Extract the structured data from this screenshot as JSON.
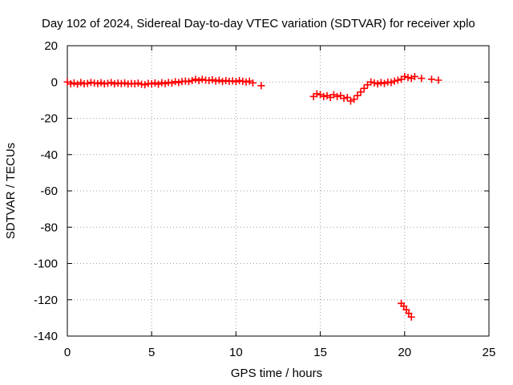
{
  "chart_data": {
    "type": "scatter",
    "title": "Day 102 of 2024, Sidereal Day-to-day VTEC variation (SDTVAR) for receiver xplo",
    "xlabel": "GPS time / hours",
    "ylabel": "SDTVAR / TECUs",
    "xlim": [
      0,
      25
    ],
    "ylim": [
      -140,
      20
    ],
    "xticks": [
      0,
      5,
      10,
      15,
      20,
      25
    ],
    "yticks": [
      20,
      0,
      -20,
      -40,
      -60,
      -80,
      -100,
      -120,
      -140
    ],
    "grid": true,
    "marker": "plus",
    "color": "#ff0000",
    "series": [
      {
        "name": "SDTVAR",
        "points": [
          [
            0.0,
            0.0
          ],
          [
            0.2,
            -1.0
          ],
          [
            0.4,
            -0.5
          ],
          [
            0.6,
            -1.2
          ],
          [
            0.8,
            -0.3
          ],
          [
            1.0,
            -1.0
          ],
          [
            1.2,
            -0.8
          ],
          [
            1.4,
            -0.2
          ],
          [
            1.6,
            -0.6
          ],
          [
            1.8,
            -0.9
          ],
          [
            2.0,
            -0.4
          ],
          [
            2.2,
            -1.0
          ],
          [
            2.4,
            -0.7
          ],
          [
            2.6,
            -0.3
          ],
          [
            2.8,
            -1.0
          ],
          [
            3.0,
            -0.6
          ],
          [
            3.2,
            -0.9
          ],
          [
            3.4,
            -0.5
          ],
          [
            3.6,
            -1.1
          ],
          [
            3.8,
            -0.8
          ],
          [
            4.0,
            -1.0
          ],
          [
            4.2,
            -0.6
          ],
          [
            4.4,
            -1.2
          ],
          [
            4.6,
            -1.5
          ],
          [
            4.8,
            -0.8
          ],
          [
            5.0,
            -1.0
          ],
          [
            5.2,
            -0.5
          ],
          [
            5.4,
            -1.2
          ],
          [
            5.6,
            -0.4
          ],
          [
            5.8,
            -0.9
          ],
          [
            6.0,
            -0.2
          ],
          [
            6.2,
            -0.6
          ],
          [
            6.4,
            0.2
          ],
          [
            6.6,
            -0.3
          ],
          [
            6.8,
            0.3
          ],
          [
            7.0,
            0.5
          ],
          [
            7.2,
            0.2
          ],
          [
            7.4,
            0.8
          ],
          [
            7.6,
            1.5
          ],
          [
            7.8,
            0.8
          ],
          [
            8.0,
            1.5
          ],
          [
            8.2,
            1.0
          ],
          [
            8.4,
            0.8
          ],
          [
            8.6,
            1.2
          ],
          [
            8.8,
            0.5
          ],
          [
            9.0,
            1.0
          ],
          [
            9.2,
            0.3
          ],
          [
            9.4,
            0.8
          ],
          [
            9.6,
            0.4
          ],
          [
            9.8,
            0.6
          ],
          [
            10.0,
            0.2
          ],
          [
            10.2,
            0.8
          ],
          [
            10.4,
            0.4
          ],
          [
            10.6,
            0.0
          ],
          [
            10.8,
            0.5
          ],
          [
            11.0,
            -0.5
          ],
          [
            11.5,
            -2.0
          ],
          [
            14.6,
            -8.0
          ],
          [
            14.8,
            -6.5
          ],
          [
            15.0,
            -7.0
          ],
          [
            15.2,
            -8.0
          ],
          [
            15.4,
            -7.5
          ],
          [
            15.6,
            -8.5
          ],
          [
            15.8,
            -7.0
          ],
          [
            16.0,
            -8.0
          ],
          [
            16.2,
            -7.5
          ],
          [
            16.4,
            -9.0
          ],
          [
            16.6,
            -8.5
          ],
          [
            16.8,
            -10.5
          ],
          [
            17.0,
            -9.5
          ],
          [
            17.2,
            -7.5
          ],
          [
            17.4,
            -5.5
          ],
          [
            17.6,
            -3.5
          ],
          [
            17.8,
            -1.5
          ],
          [
            18.0,
            0.0
          ],
          [
            18.2,
            -0.5
          ],
          [
            18.4,
            -1.0
          ],
          [
            18.6,
            -0.3
          ],
          [
            18.8,
            -0.8
          ],
          [
            19.0,
            0.0
          ],
          [
            19.2,
            -0.3
          ],
          [
            19.4,
            0.5
          ],
          [
            19.6,
            1.0
          ],
          [
            19.8,
            1.5
          ],
          [
            20.0,
            3.0
          ],
          [
            20.2,
            2.5
          ],
          [
            20.4,
            2.0
          ],
          [
            20.6,
            3.0
          ],
          [
            21.0,
            2.0
          ],
          [
            21.6,
            1.5
          ],
          [
            22.0,
            1.0
          ],
          [
            19.8,
            -122.0
          ],
          [
            19.95,
            -123.5
          ],
          [
            20.1,
            -125.5
          ],
          [
            20.25,
            -127.5
          ],
          [
            20.4,
            -129.5
          ]
        ]
      }
    ]
  }
}
